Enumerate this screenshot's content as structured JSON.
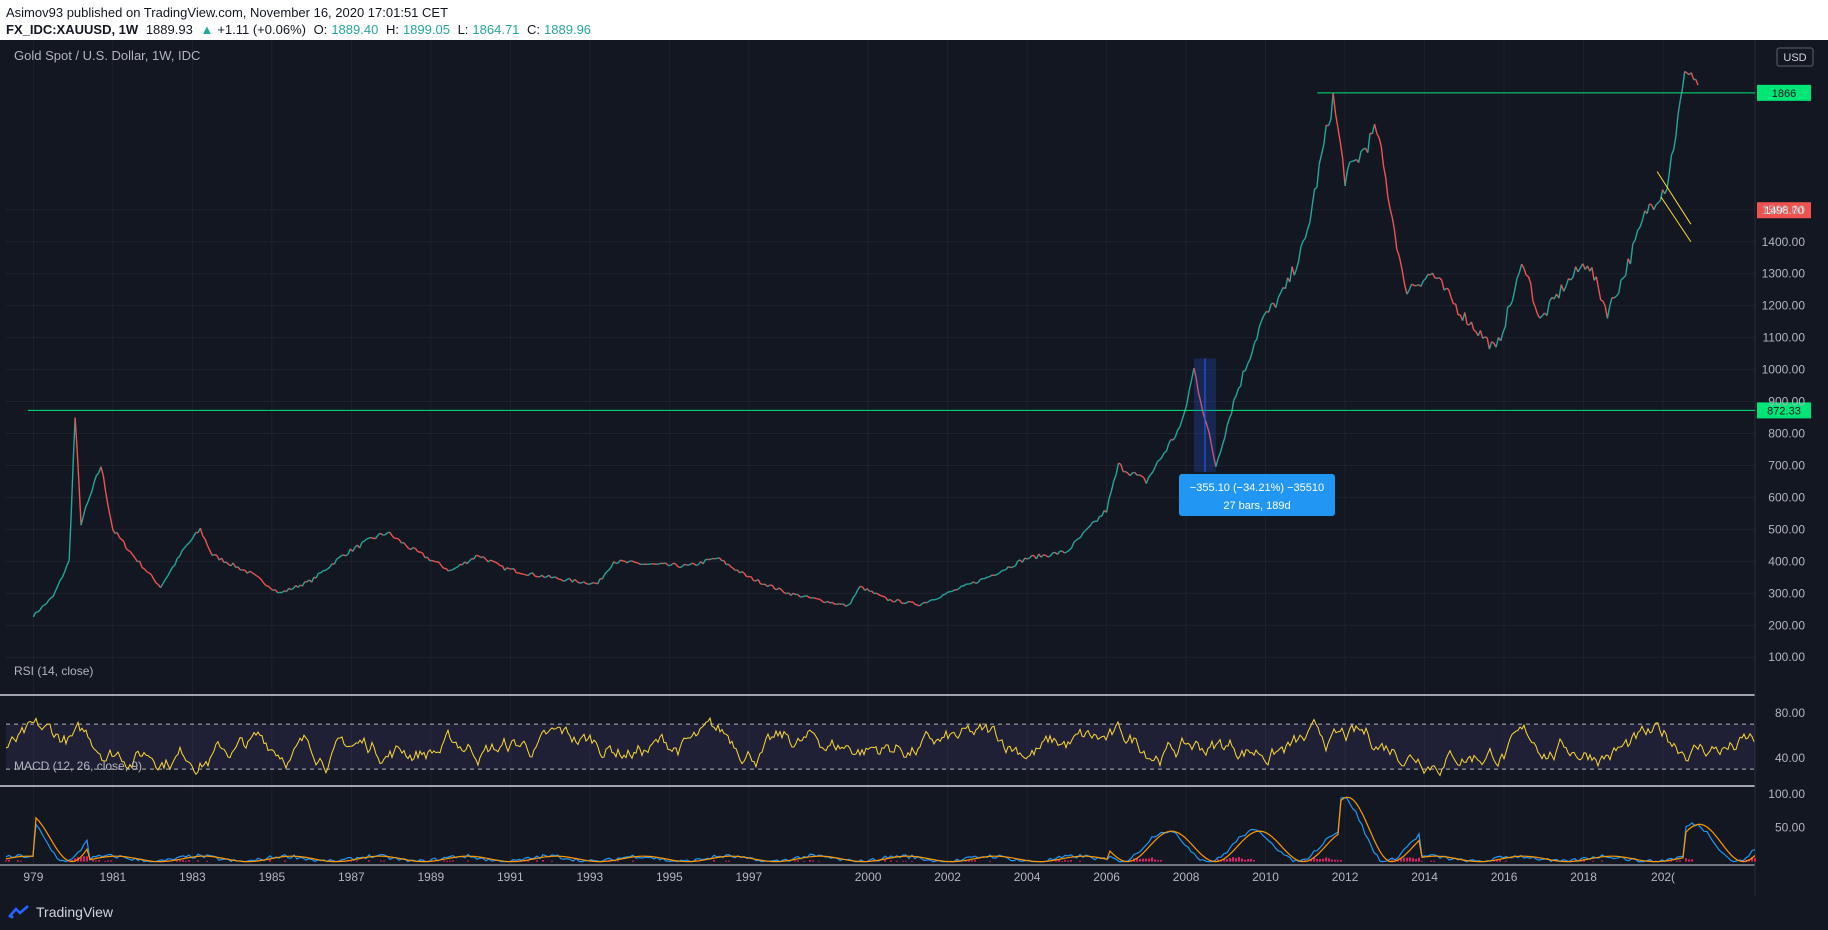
{
  "header": {
    "publisher_line": "Asimov93 published on TradingView.com, November 16, 2020 17:01:51 CET",
    "symbol": "FX_IDC:XAUUSD, 1W",
    "last": "1889.93",
    "change": "+1.11 (+0.06%)",
    "open_label": "O:",
    "open": "1889.40",
    "high_label": "H:",
    "high": "1899.05",
    "low_label": "L:",
    "low": "1864.71",
    "close_label": "C:",
    "close": "1889.96"
  },
  "chart_data": {
    "type": "line",
    "title": "Gold Spot / U.S. Dollar, 1W, IDC",
    "currency": "USD",
    "x_ticks": [
      "979",
      "1981",
      "1983",
      "1985",
      "1987",
      "1989",
      "1991",
      "1993",
      "1995",
      "1997",
      "2000",
      "2002",
      "2004",
      "2006",
      "2008",
      "2010",
      "2012",
      "2014",
      "2016",
      "2018",
      "202("
    ],
    "y_ticks": [
      "100.00",
      "200.00",
      "300.00",
      "400.00",
      "500.00",
      "600.00",
      "700.00",
      "800.00",
      "900.00",
      "1000.00",
      "1100.00",
      "1200.00",
      "1300.00",
      "1400.00",
      "1500.00"
    ],
    "ylim": [
      60,
      1950
    ],
    "price_series": {
      "name": "XAUUSD",
      "points": [
        [
          1979.0,
          230
        ],
        [
          1979.5,
          290
        ],
        [
          1979.9,
          400
        ],
        [
          1980.05,
          850
        ],
        [
          1980.2,
          520
        ],
        [
          1980.7,
          700
        ],
        [
          1981.0,
          500
        ],
        [
          1981.5,
          420
        ],
        [
          1982.2,
          320
        ],
        [
          1982.8,
          440
        ],
        [
          1983.2,
          500
        ],
        [
          1983.5,
          420
        ],
        [
          1984.5,
          360
        ],
        [
          1985.2,
          300
        ],
        [
          1986.0,
          340
        ],
        [
          1986.8,
          420
        ],
        [
          1987.5,
          470
        ],
        [
          1987.9,
          490
        ],
        [
          1988.5,
          440
        ],
        [
          1989.5,
          370
        ],
        [
          1990.2,
          420
        ],
        [
          1990.8,
          380
        ],
        [
          1991.5,
          360
        ],
        [
          1992.5,
          340
        ],
        [
          1993.2,
          330
        ],
        [
          1993.6,
          400
        ],
        [
          1994.5,
          390
        ],
        [
          1995.5,
          385
        ],
        [
          1996.2,
          410
        ],
        [
          1997.0,
          350
        ],
        [
          1998.0,
          300
        ],
        [
          1999.5,
          260
        ],
        [
          1999.8,
          320
        ],
        [
          2000.5,
          280
        ],
        [
          2001.3,
          265
        ],
        [
          2002.0,
          300
        ],
        [
          2003.0,
          350
        ],
        [
          2004.0,
          410
        ],
        [
          2005.0,
          430
        ],
        [
          2006.0,
          560
        ],
        [
          2006.3,
          700
        ],
        [
          2007.0,
          650
        ],
        [
          2007.9,
          830
        ],
        [
          2008.2,
          1000
        ],
        [
          2008.75,
          700
        ],
        [
          2009.2,
          900
        ],
        [
          2009.9,
          1150
        ],
        [
          2010.5,
          1250
        ],
        [
          2011.0,
          1400
        ],
        [
          2011.7,
          1850
        ],
        [
          2012.0,
          1600
        ],
        [
          2012.8,
          1750
        ],
        [
          2013.3,
          1400
        ],
        [
          2013.5,
          1250
        ],
        [
          2014.2,
          1300
        ],
        [
          2014.9,
          1180
        ],
        [
          2015.8,
          1060
        ],
        [
          2016.5,
          1340
        ],
        [
          2016.9,
          1150
        ],
        [
          2017.5,
          1260
        ],
        [
          2018.1,
          1340
        ],
        [
          2018.6,
          1180
        ],
        [
          2019.0,
          1290
        ],
        [
          2019.6,
          1500
        ],
        [
          2020.1,
          1580
        ],
        [
          2020.6,
          1950
        ],
        [
          2020.88,
          1890
        ]
      ]
    },
    "horizontal_levels": [
      {
        "label": "872.33",
        "value": 872.33,
        "color": "#00e676"
      },
      {
        "label": "1866",
        "value": 1866,
        "color": "#00e676"
      }
    ],
    "price_labels": [
      {
        "label": "1498.70",
        "value": 1498.7,
        "color": "#ef5350"
      }
    ],
    "measure": {
      "line1": "−355.10 (−34.21%) −35510",
      "line2": "27 bars, 189d",
      "from_x": 2008.2,
      "to_x": 2008.75,
      "from_y": 1035,
      "to_y": 680
    },
    "rsi": {
      "title": "RSI (14, close)",
      "y_ticks": [
        "80.00",
        "40.00"
      ],
      "upper": 70,
      "lower": 30,
      "ylim": [
        15,
        95
      ]
    },
    "macd": {
      "title": "MACD (12, 26, close, 9)",
      "y_ticks": [
        "100.00",
        "50.00"
      ],
      "ylim": [
        -5,
        110
      ]
    }
  },
  "footer": {
    "brand": "TradingView"
  }
}
